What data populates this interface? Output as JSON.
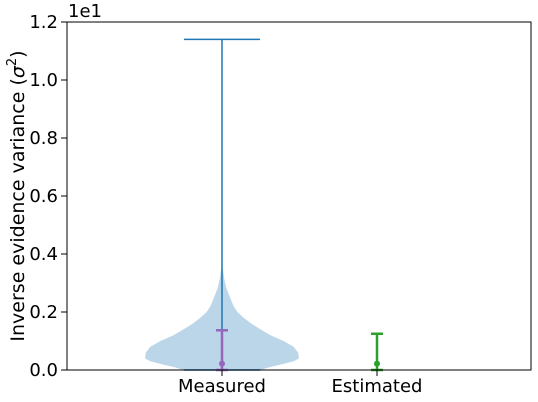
{
  "chart_data": {
    "type": "violin",
    "offset_text": "1e1",
    "ylabel": "Inverse evidence variance (",
    "ylabel_symbol": "σ",
    "ylabel_sup": "2",
    "ylabel_close": ")",
    "ylim": [
      0.0,
      1.2
    ],
    "yticks": [
      0.0,
      0.2,
      0.4,
      0.6,
      0.8,
      1.0,
      1.2
    ],
    "ytick_labels": [
      "0.0",
      "0.2",
      "0.4",
      "0.6",
      "0.8",
      "1.0",
      "1.2"
    ],
    "categories": [
      "Measured",
      "Estimated"
    ],
    "violin": {
      "category": "Measured",
      "min": 0.0,
      "max": 1.14,
      "color": "#1f77b4",
      "fill_color": "#1f77b4",
      "density_profile": [
        [
          0.0,
          0.5
        ],
        [
          0.01,
          0.62
        ],
        [
          0.02,
          0.78
        ],
        [
          0.03,
          0.93
        ],
        [
          0.04,
          1.0
        ],
        [
          0.06,
          0.99
        ],
        [
          0.08,
          0.93
        ],
        [
          0.1,
          0.8
        ],
        [
          0.12,
          0.63
        ],
        [
          0.14,
          0.5
        ],
        [
          0.16,
          0.38
        ],
        [
          0.18,
          0.28
        ],
        [
          0.2,
          0.2
        ],
        [
          0.22,
          0.15
        ],
        [
          0.24,
          0.12
        ],
        [
          0.26,
          0.09
        ],
        [
          0.28,
          0.06
        ],
        [
          0.3,
          0.04
        ],
        [
          0.32,
          0.026
        ],
        [
          0.34,
          0.015
        ],
        [
          0.36,
          0.0
        ]
      ]
    },
    "error_bars": [
      {
        "category": "Measured",
        "center": 0.022,
        "lower": 0.0,
        "upper": 0.137,
        "color": "#9467bd"
      },
      {
        "category": "Estimated",
        "center": 0.022,
        "lower": 0.0,
        "upper": 0.125,
        "color": "#2ca02c"
      }
    ]
  }
}
